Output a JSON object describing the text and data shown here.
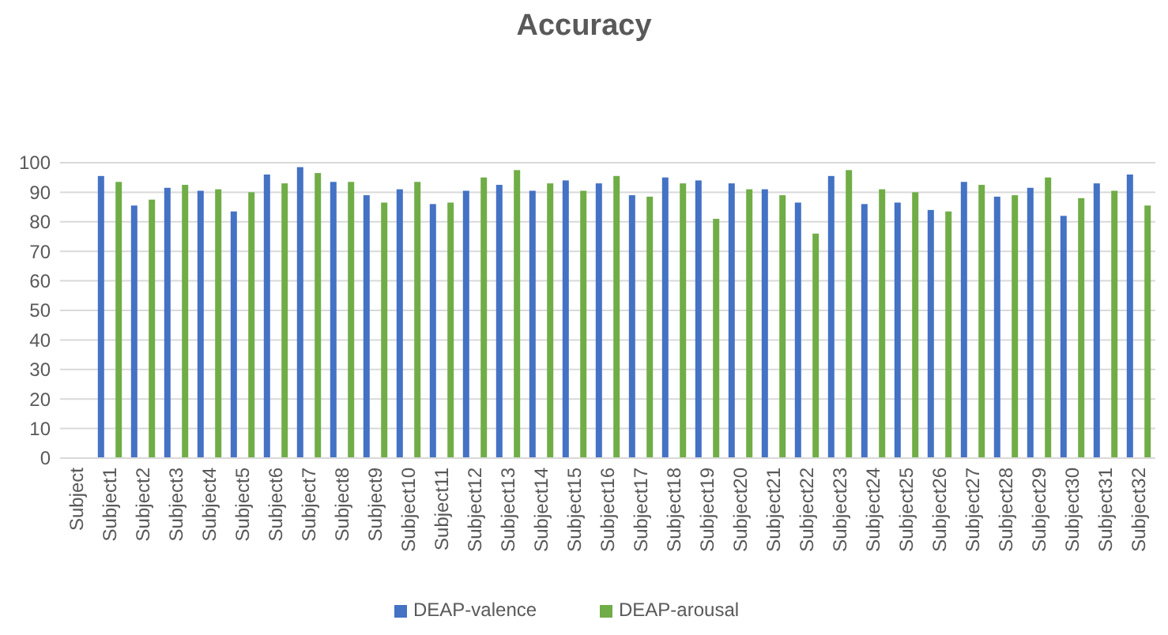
{
  "chart_data": {
    "type": "bar",
    "title": "Accuracy",
    "categories": [
      "Subject",
      "Subject1",
      "Subject2",
      "Subject3",
      "Subject4",
      "Subject5",
      "Subject6",
      "Subject7",
      "Subject8",
      "Subject9",
      "Subject10",
      "Subject11",
      "Subject12",
      "Subject13",
      "Subject14",
      "Subject15",
      "Subject16",
      "Subject17",
      "Subject18",
      "Subject19",
      "Subject20",
      "Subject21",
      "Subject22",
      "Subject23",
      "Subject24",
      "Subject25",
      "Subject26",
      "Subject27",
      "Subject28",
      "Subject29",
      "Subject30",
      "Subject31",
      "Subject32"
    ],
    "series": [
      {
        "name": "DEAP-valence",
        "color": "#4472c4",
        "values": [
          null,
          95.5,
          85.5,
          91.5,
          90.5,
          83.5,
          96,
          98.5,
          93.5,
          89,
          91,
          86,
          90.5,
          92.5,
          90.5,
          94,
          93,
          89,
          95,
          94,
          93,
          91,
          86.5,
          95.5,
          86,
          86.5,
          84,
          93.5,
          88.5,
          91.5,
          82,
          93,
          96
        ]
      },
      {
        "name": "DEAP-arousal",
        "color": "#70ad47",
        "values": [
          null,
          93.5,
          87.5,
          92.5,
          91,
          90,
          93,
          96.5,
          93.5,
          86.5,
          93.5,
          86.5,
          95,
          97.5,
          93,
          90.5,
          95.5,
          88.5,
          93,
          81,
          91,
          89,
          76,
          97.5,
          91,
          90,
          83.5,
          92.5,
          89,
          95,
          88,
          90.5,
          85.5
        ]
      }
    ],
    "ylim": [
      0,
      100
    ],
    "yticks": [
      0,
      10,
      20,
      30,
      40,
      50,
      60,
      70,
      80,
      90,
      100
    ],
    "grid": "y",
    "legend": "bottom"
  }
}
